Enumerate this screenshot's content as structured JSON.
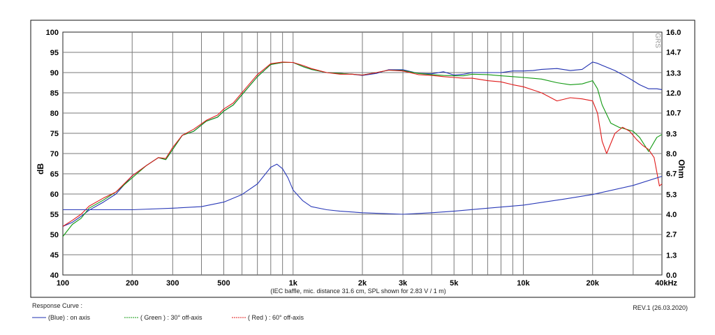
{
  "chart_data": {
    "type": "line",
    "x_scale": "log",
    "xlim": [
      100,
      40000
    ],
    "ylim": [
      40,
      100
    ],
    "y2lim": [
      0.0,
      16.0
    ],
    "grid": true,
    "ylabel": "dB",
    "y2label": "Ohm",
    "x_ticks": [
      {
        "value": 100,
        "label": "100"
      },
      {
        "value": 200,
        "label": "200"
      },
      {
        "value": 300,
        "label": "300"
      },
      {
        "value": 500,
        "label": "500"
      },
      {
        "value": 1000,
        "label": "1k"
      },
      {
        "value": 2000,
        "label": "2k"
      },
      {
        "value": 3000,
        "label": "3k"
      },
      {
        "value": 5000,
        "label": "5k"
      },
      {
        "value": 10000,
        "label": "10k"
      },
      {
        "value": 20000,
        "label": "20k"
      },
      {
        "value": 40000,
        "label": "40kHz"
      }
    ],
    "y_ticks": [
      "40",
      "45",
      "50",
      "55",
      "60",
      "65",
      "70",
      "75",
      "80",
      "85",
      "90",
      "95",
      "100"
    ],
    "y2_ticks": [
      "0.0",
      "1.3",
      "2.7",
      "4.0",
      "5.3",
      "6.7",
      "8.0",
      "9.3",
      "10.7",
      "12.0",
      "13.3",
      "14.7",
      "16.0"
    ],
    "note": "(IEC baffle, mic. distance 31.6 cm, SPL shown for 2.83 V / 1 m)",
    "legend_title": "Response Curve :",
    "revision": "REV.1 (26.03.2020)",
    "watermark": "GRS",
    "series": [
      {
        "name": "(Blue)  : on axis",
        "color": "#1f2fb0",
        "x": [
          100,
          110,
          120,
          130,
          150,
          170,
          200,
          230,
          260,
          280,
          300,
          330,
          370,
          420,
          470,
          500,
          550,
          620,
          700,
          800,
          900,
          1000,
          1100,
          1200,
          1400,
          1600,
          1800,
          2000,
          2300,
          2600,
          3000,
          3500,
          4000,
          4500,
          5000,
          5500,
          6000,
          7000,
          8000,
          9000,
          10000,
          11000,
          12000,
          14000,
          16000,
          18000,
          20000,
          21000,
          22000,
          25000,
          28000,
          30000,
          32000,
          35000,
          38000,
          40000
        ],
        "y": [
          52,
          53,
          54.5,
          56,
          58,
          60,
          64.5,
          67,
          69,
          68.5,
          71,
          74.5,
          75.5,
          78,
          79,
          80.5,
          82,
          85.5,
          89,
          92,
          92.5,
          92.5,
          91.5,
          90.8,
          90,
          89.8,
          89.6,
          89.3,
          89.8,
          90.7,
          90.7,
          89.8,
          89.7,
          90.2,
          89.4,
          89.6,
          90,
          90,
          90,
          90.4,
          90.4,
          90.5,
          90.8,
          91,
          90.5,
          90.8,
          92.6,
          92.3,
          91.8,
          90.5,
          89,
          88,
          87,
          86,
          86,
          85.8
        ]
      },
      {
        "name": "( Green ) : 30° off-axis",
        "color": "#119911",
        "x": [
          100,
          110,
          120,
          130,
          150,
          170,
          200,
          230,
          260,
          280,
          300,
          330,
          370,
          420,
          470,
          500,
          550,
          620,
          700,
          800,
          900,
          1000,
          1100,
          1200,
          1400,
          1600,
          1800,
          2000,
          2300,
          2600,
          3000,
          3500,
          4000,
          4500,
          5000,
          5500,
          6000,
          7000,
          8000,
          9000,
          10000,
          12000,
          14000,
          16000,
          18000,
          20000,
          21000,
          22000,
          24000,
          26000,
          28000,
          30000,
          32000,
          35000,
          38000,
          40000
        ],
        "y": [
          49.5,
          52.5,
          54,
          56.5,
          58.5,
          60.5,
          64,
          67,
          69,
          68.5,
          71,
          74.5,
          75.5,
          78,
          79,
          80.5,
          82,
          85.5,
          89,
          92,
          92.5,
          92.5,
          91.5,
          90.8,
          90,
          89.8,
          89.6,
          89.4,
          90,
          90.6,
          90.5,
          89.8,
          89.5,
          89.3,
          89.2,
          89.2,
          89.6,
          89.5,
          89.2,
          89,
          88.8,
          88.4,
          87.5,
          87,
          87.2,
          88,
          86,
          82,
          77.5,
          76.5,
          76,
          75.5,
          74,
          70.5,
          74,
          74.7
        ]
      },
      {
        "name": "( Red ) : 60° off-axis",
        "color": "#e01a1a",
        "x": [
          100,
          110,
          120,
          130,
          150,
          170,
          200,
          230,
          260,
          280,
          300,
          330,
          370,
          420,
          470,
          500,
          550,
          620,
          700,
          800,
          900,
          1000,
          1100,
          1200,
          1400,
          1600,
          1800,
          2000,
          2300,
          2600,
          3000,
          3500,
          4000,
          4500,
          5000,
          5500,
          6000,
          7000,
          8000,
          9000,
          10000,
          12000,
          14000,
          16000,
          18000,
          20000,
          21000,
          22000,
          23000,
          25000,
          27000,
          29000,
          31000,
          33000,
          35000,
          37000,
          39000,
          40000
        ],
        "y": [
          52,
          53.5,
          55,
          57,
          59,
          60.5,
          64.5,
          67,
          69,
          68.8,
          71.5,
          74.5,
          76,
          78.2,
          79.5,
          81,
          82.5,
          86,
          89.5,
          92.2,
          92.6,
          92.5,
          91.8,
          91,
          90,
          89.6,
          89.6,
          89.4,
          90,
          90.6,
          90.4,
          89.5,
          89.3,
          89,
          88.8,
          88.6,
          88.6,
          88,
          87.7,
          87,
          86.5,
          85,
          83,
          83.8,
          83.5,
          83,
          80,
          73,
          70,
          75,
          76.5,
          75.5,
          73.5,
          72,
          71,
          69,
          62,
          62.5
        ]
      },
      {
        "name": "impedance",
        "color": "#2a3ab8",
        "axis": "y2",
        "x": [
          100,
          200,
          300,
          400,
          500,
          600,
          700,
          800,
          850,
          900,
          950,
          1000,
          1100,
          1200,
          1400,
          1600,
          2000,
          3000,
          4000,
          5000,
          7000,
          10000,
          15000,
          20000,
          30000,
          40000
        ],
        "y": [
          4.3,
          4.3,
          4.4,
          4.5,
          4.8,
          5.3,
          6.0,
          7.1,
          7.3,
          7.0,
          6.4,
          5.6,
          4.9,
          4.5,
          4.3,
          4.2,
          4.1,
          4.0,
          4.1,
          4.2,
          4.4,
          4.6,
          5.0,
          5.3,
          5.9,
          6.5
        ]
      }
    ]
  }
}
